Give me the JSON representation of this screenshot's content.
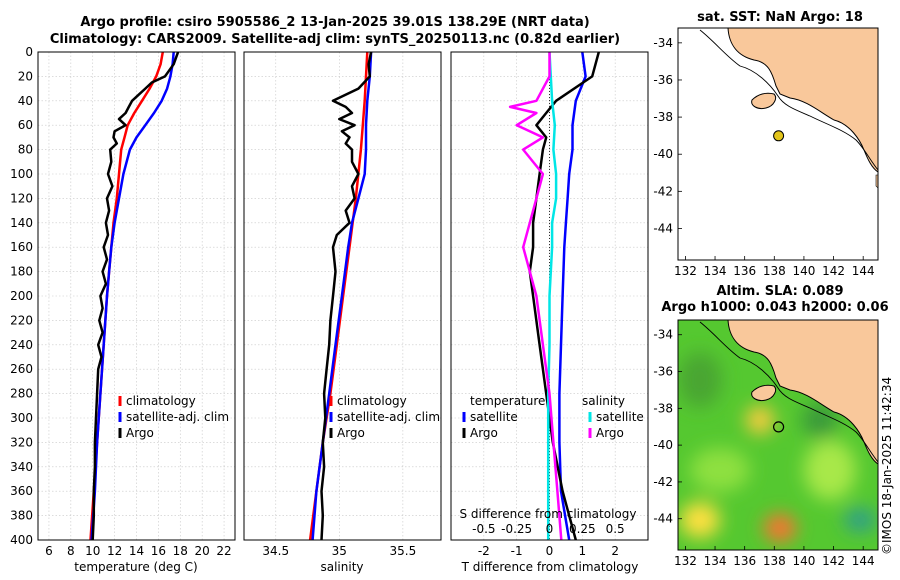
{
  "header": {
    "title_line1": "Argo profile: csiro 5905586_2 13-Jan-2025 39.01S 138.29E (NRT data)",
    "title_line2": "Climatology: CARS2009. Satellite-adj clim: synTS_20250113.nc (0.82d earlier)"
  },
  "map_sst": {
    "title": "sat. SST: NaN Argo: 18"
  },
  "map_sla": {
    "title_line1": "Altim. SLA: 0.089",
    "title_line2": "Argo h1000: 0.043 h2000: 0.06"
  },
  "footer": {
    "watermark": "©IMOS 18-Jan-2025 11:42:34"
  },
  "colors": {
    "climatology": "#ff0000",
    "satellite": "#0000ff",
    "argo": "#000000",
    "sal_satellite": "#00e6e6",
    "sal_argo": "#ff00ff",
    "land": "#f9c89b",
    "argo_marker": "#e3c51b"
  },
  "chart_data": [
    {
      "id": "temperature",
      "type": "line",
      "xlabel": "temperature (deg C)",
      "ylabel": "",
      "xlim": [
        5,
        23
      ],
      "ylim": [
        400,
        0
      ],
      "xticks": [
        6,
        8,
        10,
        12,
        14,
        16,
        18,
        20,
        22
      ],
      "yticks": [
        0,
        20,
        40,
        60,
        80,
        100,
        120,
        140,
        160,
        180,
        200,
        220,
        240,
        260,
        280,
        300,
        320,
        340,
        360,
        380,
        400
      ],
      "grid": true,
      "legend": [
        "climatology",
        "satellite-adj. clim",
        "Argo"
      ],
      "legend_position": "bottom-right",
      "series": [
        {
          "name": "climatology",
          "color": "#ff0000",
          "depth": [
            0,
            10,
            20,
            30,
            40,
            50,
            60,
            70,
            80,
            100,
            120,
            140,
            160,
            180,
            200,
            240,
            280,
            320,
            360,
            400
          ],
          "values": [
            16.4,
            16.2,
            15.8,
            15.2,
            14.5,
            13.8,
            13.2,
            12.9,
            12.6,
            12.4,
            12.2,
            11.9,
            11.7,
            11.5,
            11.3,
            11.0,
            10.7,
            10.4,
            10.1,
            9.8
          ]
        },
        {
          "name": "satellite-adj. clim",
          "color": "#0000ff",
          "depth": [
            0,
            10,
            20,
            30,
            40,
            50,
            60,
            70,
            80,
            100,
            120,
            140,
            160,
            180,
            200,
            240,
            280,
            320,
            360,
            400
          ],
          "values": [
            17.4,
            17.3,
            17.1,
            16.8,
            16.3,
            15.6,
            14.8,
            14.0,
            13.4,
            12.8,
            12.4,
            12.0,
            11.7,
            11.5,
            11.3,
            11.0,
            10.7,
            10.4,
            10.2,
            9.9
          ]
        },
        {
          "name": "Argo",
          "color": "#000000",
          "depth": [
            0,
            5,
            10,
            15,
            20,
            25,
            30,
            35,
            40,
            45,
            50,
            55,
            60,
            65,
            70,
            75,
            80,
            90,
            100,
            110,
            120,
            130,
            140,
            150,
            160,
            170,
            180,
            190,
            200,
            210,
            220,
            230,
            240,
            250,
            260,
            280,
            300,
            320,
            340,
            360,
            380,
            400
          ],
          "values": [
            17.8,
            17.6,
            17.4,
            17.0,
            16.6,
            15.4,
            14.8,
            14.2,
            13.6,
            13.3,
            13.0,
            12.4,
            13.0,
            12.0,
            11.9,
            12.2,
            11.6,
            11.7,
            11.4,
            11.8,
            11.3,
            11.5,
            11.2,
            11.4,
            11.0,
            11.3,
            10.9,
            11.2,
            10.7,
            10.9,
            10.6,
            10.9,
            10.5,
            10.8,
            10.5,
            10.4,
            10.3,
            10.2,
            10.2,
            10.1,
            10.1,
            10.0
          ]
        }
      ]
    },
    {
      "id": "salinity",
      "type": "line",
      "xlabel": "salinity",
      "xlim": [
        34.25,
        35.8
      ],
      "ylim": [
        400,
        0
      ],
      "xticks": [
        34.5,
        35,
        35.5
      ],
      "xticklabels": [
        "34.5",
        "35",
        "35.5"
      ],
      "grid": true,
      "legend": [
        "climatology",
        "satellite-adj. clim",
        "Argo"
      ],
      "legend_position": "bottom-right",
      "series": [
        {
          "name": "climatology",
          "color": "#ff0000",
          "depth": [
            0,
            40,
            80,
            120,
            160,
            200,
            240,
            280,
            320,
            360,
            400
          ],
          "values": [
            35.22,
            35.2,
            35.17,
            35.13,
            35.08,
            35.03,
            34.98,
            34.93,
            34.87,
            34.82,
            34.77
          ]
        },
        {
          "name": "satellite-adj. clim",
          "color": "#0000ff",
          "depth": [
            0,
            20,
            40,
            60,
            80,
            100,
            120,
            140,
            160,
            200,
            240,
            280,
            320,
            360,
            400
          ],
          "values": [
            35.25,
            35.24,
            35.22,
            35.21,
            35.21,
            35.2,
            35.15,
            35.1,
            35.07,
            35.02,
            34.97,
            34.92,
            34.87,
            34.82,
            34.79
          ]
        },
        {
          "name": "Argo",
          "color": "#000000",
          "depth": [
            0,
            10,
            20,
            30,
            40,
            45,
            50,
            55,
            60,
            65,
            70,
            75,
            80,
            90,
            100,
            110,
            120,
            130,
            140,
            150,
            160,
            180,
            200,
            220,
            240,
            260,
            280,
            300,
            320,
            340,
            360,
            380,
            400
          ],
          "values": [
            35.25,
            35.23,
            35.24,
            35.15,
            34.95,
            35.05,
            35.1,
            35.0,
            35.12,
            35.02,
            35.08,
            35.05,
            35.1,
            35.1,
            35.15,
            35.1,
            35.12,
            35.05,
            35.08,
            34.98,
            34.95,
            34.97,
            34.95,
            34.93,
            34.92,
            34.9,
            34.88,
            34.89,
            34.87,
            34.88,
            34.86,
            34.87,
            34.86
          ]
        }
      ]
    },
    {
      "id": "difference",
      "type": "line",
      "xlabel": "T difference from climatology",
      "xlim": [
        -3,
        3
      ],
      "ylim": [
        400,
        0
      ],
      "xticks": [
        -2,
        -1,
        0,
        1,
        2
      ],
      "xticklabels": [
        "-2",
        "-1",
        "0",
        "1",
        "2"
      ],
      "s_axis_label": "S difference from climatology",
      "s_ticks": [
        -0.5,
        -0.25,
        0,
        0.25,
        0.5
      ],
      "s_ticklabels": [
        "-0.5",
        "-0.25",
        "0",
        "0.25",
        "0.5"
      ],
      "grid": true,
      "legend_temperature_title": "temperature",
      "legend_salinity_title": "salinity",
      "legend_temperature": [
        "satellite",
        "Argo"
      ],
      "legend_salinity": [
        "satellite",
        "Argo"
      ],
      "series": [
        {
          "name": "T satellite",
          "color": "#0000ff",
          "depth": [
            0,
            20,
            40,
            60,
            80,
            100,
            120,
            140,
            160,
            200,
            240,
            280,
            320,
            360,
            400
          ],
          "values": [
            1.0,
            1.1,
            0.8,
            0.7,
            0.7,
            0.6,
            0.55,
            0.5,
            0.45,
            0.4,
            0.35,
            0.3,
            0.3,
            0.35,
            0.6
          ]
        },
        {
          "name": "T Argo",
          "color": "#000000",
          "depth": [
            0,
            20,
            40,
            50,
            60,
            70,
            80,
            100,
            120,
            140,
            160,
            180,
            200,
            240,
            280,
            320,
            360,
            400
          ],
          "values": [
            1.5,
            1.3,
            0.2,
            -0.1,
            -0.4,
            -0.1,
            -0.2,
            -0.3,
            -0.4,
            -0.5,
            -0.5,
            -0.6,
            -0.5,
            -0.3,
            -0.1,
            0.1,
            0.4,
            0.8
          ]
        },
        {
          "name": "S satellite",
          "color": "#00e6e6",
          "depth": [
            0,
            20,
            40,
            60,
            80,
            100,
            120,
            140,
            160,
            200,
            240,
            280,
            320,
            360,
            400
          ],
          "values": [
            0.0,
            0.01,
            0.02,
            0.04,
            0.03,
            0.05,
            0.05,
            0.02,
            0.02,
            0.0,
            0.0,
            -0.01,
            -0.01,
            -0.01,
            -0.01
          ]
        },
        {
          "name": "S Argo",
          "color": "#ff00ff",
          "depth": [
            0,
            20,
            40,
            45,
            50,
            60,
            70,
            80,
            100,
            120,
            140,
            160,
            180,
            200,
            240,
            280,
            320,
            360,
            400
          ],
          "values": [
            0.0,
            0.0,
            -0.1,
            -0.3,
            -0.1,
            -0.25,
            -0.05,
            -0.2,
            -0.05,
            -0.1,
            -0.15,
            -0.2,
            -0.15,
            -0.1,
            -0.05,
            0.0,
            0.03,
            0.06,
            0.09
          ]
        }
      ]
    },
    {
      "id": "map_sst",
      "type": "scatter",
      "xlim": [
        131.5,
        145
      ],
      "ylim": [
        -45.7,
        -33.2
      ],
      "xticks": [
        132,
        134,
        136,
        138,
        140,
        142,
        144
      ],
      "yticks": [
        -34,
        -36,
        -38,
        -40,
        -42,
        -44
      ],
      "points": [
        {
          "label": "Argo",
          "lon": 138.29,
          "lat": -39.01
        }
      ]
    },
    {
      "id": "map_sla",
      "type": "heatmap",
      "xlim": [
        131.5,
        145
      ],
      "ylim": [
        -45.7,
        -33.2
      ],
      "xticks": [
        132,
        134,
        136,
        138,
        140,
        142,
        144
      ],
      "yticks": [
        -34,
        -36,
        -38,
        -40,
        -42,
        -44
      ],
      "points": [
        {
          "label": "Argo",
          "lon": 138.29,
          "lat": -39.01
        }
      ]
    }
  ]
}
